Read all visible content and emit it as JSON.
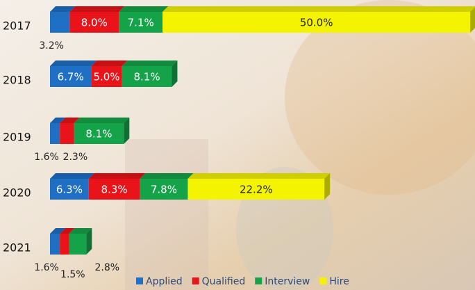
{
  "chart_data": {
    "type": "bar",
    "orientation": "horizontal",
    "stacked": true,
    "categories": [
      "2017",
      "2018",
      "2019",
      "2020",
      "2021"
    ],
    "series": [
      {
        "name": "Applied",
        "color": "#1f6fc4",
        "values": [
          3.2,
          6.7,
          1.6,
          6.3,
          1.6
        ],
        "value_labels": [
          "3.2%",
          "6.7%",
          "1.6%",
          "6.3%",
          "1.6%"
        ]
      },
      {
        "name": "Qualified",
        "color": "#e8141a",
        "values": [
          8.0,
          5.0,
          2.3,
          8.3,
          1.5
        ],
        "value_labels": [
          "8.0%",
          "5.0%",
          "2.3%",
          "8.3%",
          "1.5%"
        ]
      },
      {
        "name": "Interview",
        "color": "#15a34a",
        "values": [
          7.1,
          8.1,
          8.1,
          7.8,
          2.8
        ],
        "value_labels": [
          "7.1%",
          "8.1%",
          "8.1%",
          "7.8%",
          "2.8%"
        ]
      },
      {
        "name": "Hire",
        "color": "#f4f400",
        "values": [
          50.0,
          null,
          null,
          22.2,
          null
        ],
        "value_labels": [
          "50.0%",
          null,
          null,
          "22.2%",
          null
        ]
      }
    ],
    "legend": "bottom"
  }
}
